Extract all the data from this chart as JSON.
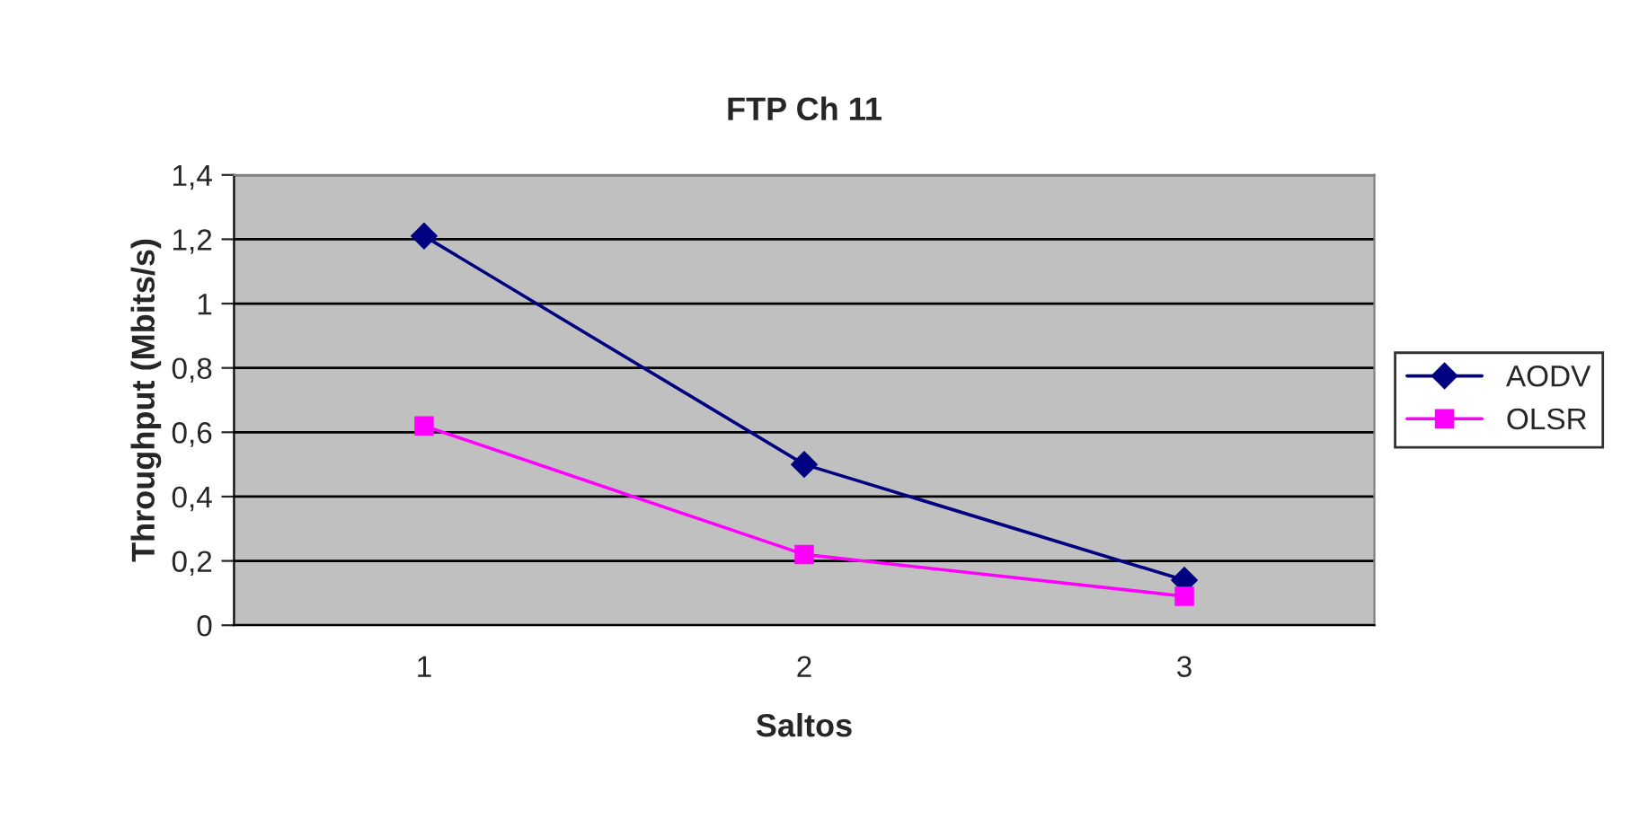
{
  "chart_data": {
    "type": "line",
    "title": "FTP Ch 11",
    "xlabel": "Saltos",
    "ylabel": "Throughput (Mbits/s)",
    "categories": [
      "1",
      "2",
      "3"
    ],
    "series": [
      {
        "name": "AODV",
        "color": "#000080",
        "values": [
          1.21,
          0.5,
          0.14
        ],
        "marker": "diamond"
      },
      {
        "name": "OLSR",
        "color": "#ff00ff",
        "values": [
          0.62,
          0.22,
          0.09
        ],
        "marker": "square"
      }
    ],
    "ylim": [
      0,
      1.4
    ],
    "yticks": [
      0,
      {
        "value": 0.2,
        "label": "0,2"
      },
      {
        "value": 0.4,
        "label": "0,4"
      },
      {
        "value": 0.6,
        "label": "0,6"
      },
      {
        "value": 0.8,
        "label": "0,8"
      },
      1,
      {
        "value": 1.2,
        "label": "1,2"
      },
      {
        "value": 1.4,
        "label": "1,4"
      }
    ],
    "grid": "y",
    "legend": "right",
    "line_style": "solid"
  }
}
